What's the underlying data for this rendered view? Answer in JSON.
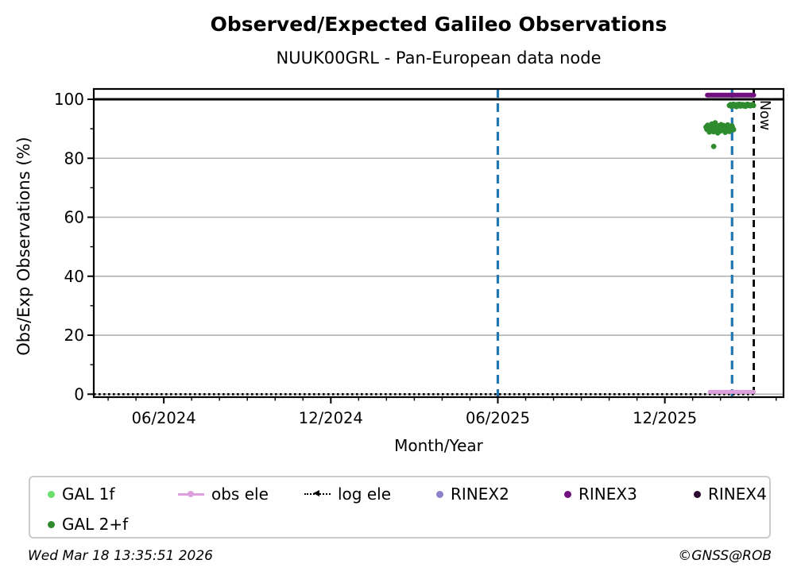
{
  "title": "Observed/Expected Galileo Observations",
  "subtitle": "NUUK00GRL - Pan-European data node",
  "now_label": "Now",
  "footer": {
    "timestamp": "Wed Mar 18 13:35:51 2026",
    "copyright": "©GNSS@ROB"
  },
  "chart_data": {
    "type": "scatter",
    "title": "Observed/Expected Galileo Observations",
    "subtitle": "NUUK00GRL - Pan-European data node",
    "xlabel": "Month/Year",
    "ylabel": "Obs/Exp Observations (%)",
    "xlim": [
      2024.207,
      2026.272
    ],
    "ylim": [
      -1,
      103.5
    ],
    "grid": "horizontal",
    "grid_color": "#b3b3b3",
    "legend_position": "below",
    "x_ticks": [
      {
        "value": 2024.4167,
        "label": "06/2024"
      },
      {
        "value": 2024.9167,
        "label": "12/2024"
      },
      {
        "value": 2025.4167,
        "label": "06/2025"
      },
      {
        "value": 2025.9167,
        "label": "12/2025"
      }
    ],
    "x_minor_tick_step_months": 1,
    "y_ticks": [
      {
        "value": 0,
        "label": "0"
      },
      {
        "value": 20,
        "label": "20"
      },
      {
        "value": 40,
        "label": "40"
      },
      {
        "value": 60,
        "label": "60"
      },
      {
        "value": 80,
        "label": "80"
      },
      {
        "value": 100,
        "label": "100"
      }
    ],
    "y_minor_ticks": [
      10,
      30,
      50,
      70,
      90
    ],
    "y_gridlines": [
      0,
      20,
      40,
      60,
      80
    ],
    "reference_line": {
      "y": 100,
      "color": "#000000",
      "width": 3
    },
    "vlines": [
      {
        "x": 2025.4167,
        "color": "#1f77b4",
        "style": "dashed",
        "name": "event-marker-1"
      },
      {
        "x": 2026.118,
        "color": "#1f77b4",
        "style": "dashed",
        "name": "event-marker-2"
      },
      {
        "x": 2026.183,
        "color": "#000000",
        "style": "dashed",
        "name": "now-line",
        "label": "Now"
      }
    ],
    "series": [
      {
        "name": "GAL 1f",
        "type": "scatter",
        "color": "#6ade6a",
        "points": []
      },
      {
        "name": "GAL 2+f",
        "type": "scatter",
        "color": "#2e8b2e",
        "points": [
          [
            2026.04,
            90.6
          ],
          [
            2026.0425,
            89.8
          ],
          [
            2026.045,
            91.2
          ],
          [
            2026.0475,
            90.1
          ],
          [
            2026.05,
            88.9
          ],
          [
            2026.0525,
            90.9
          ],
          [
            2026.055,
            89.4
          ],
          [
            2026.0575,
            91.6
          ],
          [
            2026.06,
            90.3
          ],
          [
            2026.0625,
            89.0
          ],
          [
            2026.065,
            90.7
          ],
          [
            2026.0675,
            92.0
          ],
          [
            2026.07,
            89.6
          ],
          [
            2026.0725,
            90.2
          ],
          [
            2026.075,
            88.6
          ],
          [
            2026.0775,
            91.0
          ],
          [
            2026.08,
            90.0
          ],
          [
            2026.0825,
            89.2
          ],
          [
            2026.085,
            91.4
          ],
          [
            2026.0875,
            90.5
          ],
          [
            2026.09,
            89.9
          ],
          [
            2026.0925,
            91.1
          ],
          [
            2026.095,
            90.0
          ],
          [
            2026.0975,
            88.8
          ],
          [
            2026.1,
            90.8
          ],
          [
            2026.1025,
            89.5
          ],
          [
            2026.105,
            91.3
          ],
          [
            2026.1075,
            90.2
          ],
          [
            2026.11,
            89.1
          ],
          [
            2026.1125,
            90.6
          ],
          [
            2026.115,
            89.8
          ],
          [
            2026.1175,
            91.0
          ],
          [
            2026.12,
            90.3
          ],
          [
            2026.1225,
            89.7
          ],
          [
            2026.063,
            84.0
          ],
          [
            2026.11,
            97.9
          ],
          [
            2026.113,
            98.2
          ],
          [
            2026.116,
            97.6
          ],
          [
            2026.119,
            98.0
          ],
          [
            2026.122,
            98.3
          ],
          [
            2026.125,
            97.8
          ],
          [
            2026.128,
            98.1
          ],
          [
            2026.131,
            97.5
          ],
          [
            2026.134,
            98.2
          ],
          [
            2026.137,
            97.9
          ],
          [
            2026.14,
            98.3
          ],
          [
            2026.143,
            97.7
          ],
          [
            2026.146,
            98.0
          ],
          [
            2026.149,
            98.2
          ],
          [
            2026.152,
            97.8
          ],
          [
            2026.155,
            98.1
          ],
          [
            2026.158,
            97.6
          ],
          [
            2026.161,
            98.0
          ],
          [
            2026.164,
            98.3
          ],
          [
            2026.167,
            97.9
          ],
          [
            2026.17,
            98.1
          ],
          [
            2026.173,
            97.8
          ],
          [
            2026.176,
            98.0
          ],
          [
            2026.179,
            98.2
          ],
          [
            2026.182,
            97.9
          ]
        ]
      },
      {
        "name": "obs ele",
        "type": "line",
        "color": "#dda0dd",
        "stroke_width": 5,
        "points": [
          [
            2026.051,
            0.8
          ],
          [
            2026.183,
            0.8
          ]
        ]
      },
      {
        "name": "log ele",
        "type": "dotted_line",
        "color": "#000000",
        "stroke_width": 2.6,
        "points": [
          [
            2024.207,
            0
          ],
          [
            2026.183,
            0
          ]
        ]
      },
      {
        "name": "RINEX2",
        "type": "scatter",
        "color": "#8c82c8",
        "points": []
      },
      {
        "name": "RINEX3",
        "type": "line",
        "color": "#70107e",
        "stroke_width": 6,
        "points": [
          [
            2026.044,
            101.4
          ],
          [
            2026.183,
            101.4
          ]
        ]
      },
      {
        "name": "RINEX4",
        "type": "scatter",
        "color": "#2d0a32",
        "points": []
      }
    ],
    "legend": {
      "items": [
        {
          "label": "GAL 1f",
          "marker": "dot",
          "color": "#6ade6a"
        },
        {
          "label": "obs ele",
          "marker": "line-dot",
          "color": "#dda0dd"
        },
        {
          "label": "log ele",
          "marker": "dotted-arrow",
          "color": "#000000"
        },
        {
          "label": "RINEX2",
          "marker": "dot",
          "color": "#8c82c8"
        },
        {
          "label": "RINEX3",
          "marker": "dot",
          "color": "#70107e"
        },
        {
          "label": "RINEX4",
          "marker": "dot",
          "color": "#2d0a32"
        },
        {
          "label": "GAL 2+f",
          "marker": "dot",
          "color": "#2e8b2e"
        }
      ]
    }
  }
}
